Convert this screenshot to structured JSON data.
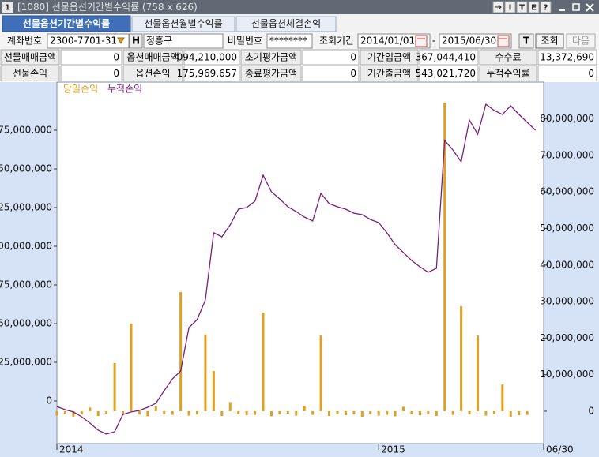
{
  "window": {
    "number": "1",
    "title": "[1080]  선물옵션기간별수익률  (758 x 626)",
    "controls": [
      "I",
      "T",
      "E",
      "?"
    ]
  },
  "tabs": [
    "선물옵션기간별수익률",
    "선물옵션월별수익률",
    "선물옵션체결손익"
  ],
  "form": {
    "account_label": "계좌번호",
    "account": "2300-7701-31",
    "h_button": "H",
    "name": "정흥구",
    "password_label": "비밀번호",
    "password": "********",
    "period_label": "조회기간",
    "start": "2014/01/01",
    "dash": "-",
    "end": "2015/06/30",
    "t_button": "T",
    "search": "조회",
    "next": "다음"
  },
  "summary": {
    "rows": [
      [
        "선물매매금액",
        "0",
        "옵션매매금액",
        "094,210,000",
        "초기평가금액",
        "0",
        "기간입금액",
        "367,044,410",
        "수수료",
        "13,372,690"
      ],
      [
        "선물손익",
        "0",
        "옵션손익",
        "175,969,657",
        "종료평가금액",
        "0",
        "기간출금액",
        "543,021,720",
        "누적수익률",
        "0"
      ]
    ]
  },
  "chart_data": {
    "type": "bar-line",
    "categories": [
      "2014",
      null,
      null,
      null,
      null,
      null,
      null,
      null,
      null,
      null,
      null,
      null,
      null,
      null,
      null,
      null,
      null,
      null,
      null,
      null,
      null,
      null,
      null,
      null,
      null,
      null,
      null,
      null,
      null,
      null,
      null,
      null,
      null,
      null,
      null,
      null,
      null,
      null,
      null,
      "2015",
      null,
      null,
      null,
      null,
      null,
      null,
      null,
      null,
      null,
      null,
      null,
      null,
      null,
      null,
      null,
      null,
      null,
      null,
      null,
      "06/30"
    ],
    "series": [
      {
        "name": "당일손익",
        "type": "bar",
        "axis": "y2",
        "color": "#e0a020",
        "values": [
          -1200000,
          -800000,
          -1500000,
          -900000,
          1000000,
          -1300000,
          -700000,
          13200000,
          -1100000,
          24000000,
          -900000,
          -1400000,
          1500000,
          -800000,
          -1000000,
          32600000,
          -1200000,
          -900000,
          21000000,
          11000000,
          -1300000,
          2500000,
          -800000,
          -1100000,
          -1000000,
          27000000,
          -1400000,
          -900000,
          -700000,
          -1200000,
          1500000,
          -1000000,
          20700000,
          -1300000,
          -800000,
          -1100000,
          -900000,
          -1500000,
          -700000,
          -1200000,
          -1000000,
          -1400000,
          1200000,
          -900000,
          -1100000,
          -800000,
          -1300000,
          84400000,
          -1000000,
          28700000,
          -900000,
          20700000,
          -1200000,
          -800000,
          7300000,
          -1500000,
          -1100000,
          -1000000,
          null,
          null
        ]
      },
      {
        "name": "누적손익",
        "type": "line",
        "axis": "y",
        "color": "#7a1f7a",
        "values": [
          -3600000,
          -5600000,
          -7100000,
          -10200000,
          -14300000,
          -18900000,
          -21400000,
          -19900000,
          -8700000,
          -7100000,
          -6100000,
          -4100000,
          -1500000,
          6600000,
          14300000,
          19400000,
          47400000,
          52600000,
          65300000,
          108700000,
          106100000,
          113800000,
          124000000,
          125000000,
          129100000,
          145900000,
          135200000,
          130600000,
          125500000,
          122400000,
          118900000,
          116300000,
          134200000,
          127600000,
          125500000,
          124000000,
          121400000,
          120400000,
          117300000,
          115300000,
          108700000,
          101000000,
          95900000,
          90800000,
          86700000,
          83200000,
          85700000,
          168400000,
          162200000,
          154600000,
          181600000,
          172400000,
          191800000,
          187800000,
          185200000,
          190800000,
          185200000,
          180100000,
          175000000,
          null
        ]
      }
    ],
    "ylim": [
      -27550000,
      206120000
    ],
    "yticks": [
      0,
      {
        "value": 25000000,
        "label": "25,000,000"
      },
      {
        "value": 50000000,
        "label": "50,000,000"
      },
      {
        "value": 75000000,
        "label": "75,000,000"
      },
      {
        "value": 100000000,
        "label": "00,000,000"
      },
      {
        "value": 125000000,
        "label": "25,000,000"
      },
      {
        "value": 150000000,
        "label": "50,000,000"
      },
      {
        "value": 175000000,
        "label": "75,000,000"
      }
    ],
    "y2lim": [
      -8860000,
      90060000
    ],
    "y2ticks": [
      0,
      {
        "value": 10000000,
        "label": "10,000,000"
      },
      {
        "value": 20000000,
        "label": "20,000,000"
      },
      {
        "value": 30000000,
        "label": "30,000,000"
      },
      {
        "value": 40000000,
        "label": "40,000,000"
      },
      {
        "value": 50000000,
        "label": "50,000,000"
      },
      {
        "value": 60000000,
        "label": "60,000,000"
      },
      {
        "value": 70000000,
        "label": "70,000,000"
      },
      {
        "value": 80000000,
        "label": "80,000,000"
      }
    ]
  }
}
